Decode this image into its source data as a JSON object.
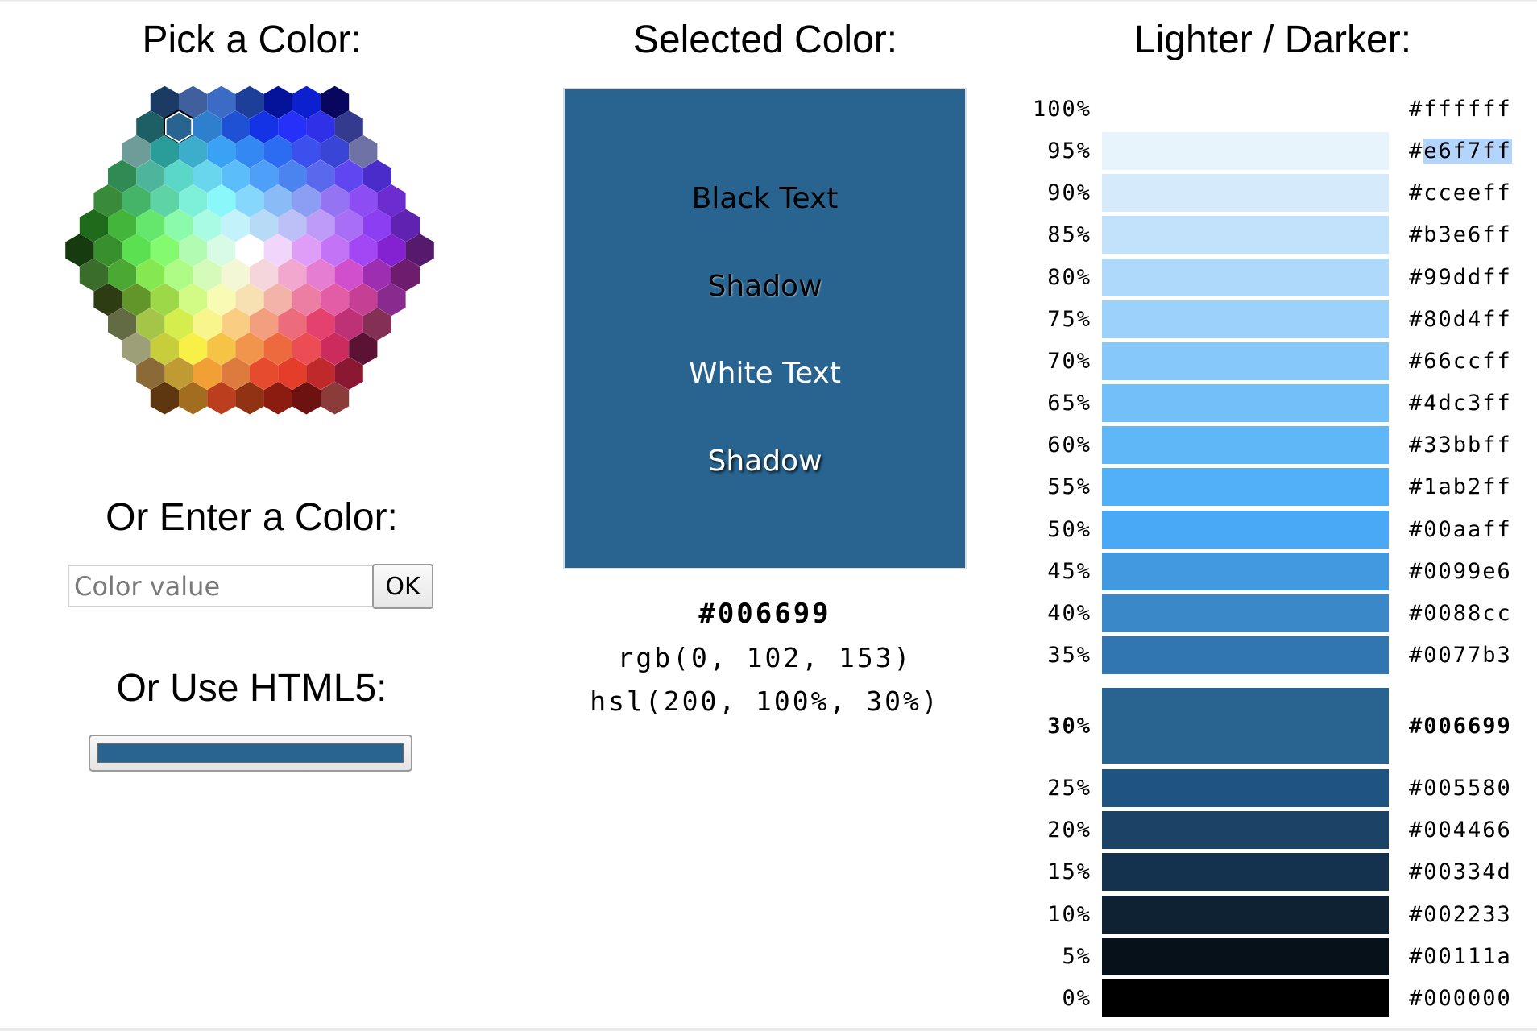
{
  "titles": {
    "pick": "Pick a Color:",
    "selected": "Selected Color:",
    "lighter_darker": "Lighter / Darker:",
    "enter": "Or Enter a Color:",
    "html5": "Or Use HTML5:"
  },
  "color_input": {
    "placeholder": "Color value",
    "value": ""
  },
  "ok_button_label": "OK",
  "selected": {
    "hex": "#006699",
    "rgb": "rgb(0, 102, 153)",
    "hsl": "hsl(200, 100%, 30%)",
    "preview_color": "#28648f"
  },
  "preview_texts": {
    "black_text": "Black Text",
    "black_shadow": "Shadow",
    "white_text": "White Text",
    "white_shadow": "Shadow"
  },
  "html5_picker_color": "#28648f",
  "shades": [
    {
      "pct": "100%",
      "hex": "#ffffff",
      "swatch": "#ffffff"
    },
    {
      "pct": "95%",
      "hex": "#e6f7ff",
      "swatch": "#e8f4fc",
      "highlight": "e6f7ff"
    },
    {
      "pct": "90%",
      "hex": "#cceeff",
      "swatch": "#d5eafb"
    },
    {
      "pct": "85%",
      "hex": "#b3e6ff",
      "swatch": "#c2e2fb"
    },
    {
      "pct": "80%",
      "hex": "#99ddff",
      "swatch": "#aed9fb"
    },
    {
      "pct": "75%",
      "hex": "#80d4ff",
      "swatch": "#9bd1fa"
    },
    {
      "pct": "70%",
      "hex": "#66ccff",
      "swatch": "#86c8f9"
    },
    {
      "pct": "65%",
      "hex": "#4dc3ff",
      "swatch": "#73bff9"
    },
    {
      "pct": "60%",
      "hex": "#33bbff",
      "swatch": "#60b7f8"
    },
    {
      "pct": "55%",
      "hex": "#1ab2ff",
      "swatch": "#52b0f8"
    },
    {
      "pct": "50%",
      "hex": "#00aaff",
      "swatch": "#4aa9f6"
    },
    {
      "pct": "45%",
      "hex": "#0099e6",
      "swatch": "#4199df"
    },
    {
      "pct": "40%",
      "hex": "#0088cc",
      "swatch": "#3a88c7"
    },
    {
      "pct": "35%",
      "hex": "#0077b3",
      "swatch": "#3176ae"
    },
    {
      "pct": "30%",
      "hex": "#006699",
      "swatch": "#28648f",
      "current": true
    },
    {
      "pct": "25%",
      "hex": "#005580",
      "swatch": "#1f5380"
    },
    {
      "pct": "20%",
      "hex": "#004466",
      "swatch": "#1a4366"
    },
    {
      "pct": "15%",
      "hex": "#00334d",
      "swatch": "#14324d"
    },
    {
      "pct": "10%",
      "hex": "#002233",
      "swatch": "#0e2233"
    },
    {
      "pct": "5%",
      "hex": "#00111a",
      "swatch": "#07111a"
    },
    {
      "pct": "0%",
      "hex": "#000000",
      "swatch": "#000000"
    }
  ],
  "hex_palette": [
    [
      "#1b3a64",
      "#3f5f9d",
      "#3c6bc6",
      "#1e3f99",
      "#04139a",
      "#0c20d0",
      "#08065e"
    ],
    [
      "#1e5f65",
      "#28648f",
      "#2f7fcf",
      "#1f51d4",
      "#1433e6",
      "#2530f9",
      "#3030e8",
      "#343a8e"
    ],
    [
      "#6e9c99",
      "#2a9c9a",
      "#3caecc",
      "#39a2f3",
      "#3389f1",
      "#2c6cf3",
      "#3b50ec",
      "#3945d4",
      "#6e72a4"
    ],
    [
      "#2f8b53",
      "#4cb59b",
      "#5bd7c7",
      "#69d6ee",
      "#5cbdfb",
      "#4e9ff7",
      "#4b83ef",
      "#5a68ee",
      "#5f46f1",
      "#4a2cca"
    ],
    [
      "#3a8a3b",
      "#43b468",
      "#5ed3a3",
      "#7ef0da",
      "#8af8fb",
      "#85d8fb",
      "#89bbf7",
      "#8c9ef3",
      "#9474f3",
      "#8c4df3",
      "#6c2cd0"
    ],
    [
      "#1e6b1c",
      "#43b53b",
      "#65e66d",
      "#8bfaaa",
      "#a9fbe4",
      "#c3f2fb",
      "#b7daf6",
      "#bcc0f6",
      "#bd9bf6",
      "#a96ef6",
      "#8c3ff2",
      "#6022b0"
    ],
    [
      "#163b0e",
      "#378f2d",
      "#5be04f",
      "#84fb6f",
      "#b2fbb3",
      "#d8fbe6",
      "#ffffff",
      "#f1d5fb",
      "#e09df8",
      "#c374f6",
      "#a346f3",
      "#8422d1",
      "#551a6b"
    ],
    [
      "#3a6d2c",
      "#4ba832",
      "#86e851",
      "#aefb86",
      "#d5fbbb",
      "#f3f7d5",
      "#f6d6dd",
      "#f2a7cf",
      "#e57ed3",
      "#d14fcd",
      "#9d2eb2",
      "#6d1c6e"
    ],
    [
      "#2e3c14",
      "#62962a",
      "#9cd848",
      "#d1fb85",
      "#f7fbb4",
      "#f7e1b3",
      "#f3b3a9",
      "#ec7ea4",
      "#e25ca6",
      "#c54094",
      "#892a8e"
    ],
    [
      "#636b44",
      "#a5c548",
      "#d5ee4e",
      "#f8f58d",
      "#f9ce83",
      "#f49e80",
      "#ec6c7b",
      "#e5416e",
      "#bf3177",
      "#843055"
    ],
    [
      "#9d9f78",
      "#c8ce3b",
      "#f9f047",
      "#f5c447",
      "#f2954c",
      "#ec6a3d",
      "#ec4c54",
      "#cb2c5d",
      "#5c1235"
    ],
    [
      "#8b6a37",
      "#c09a32",
      "#f29f35",
      "#dc7b3d",
      "#e64b2d",
      "#e43e2a",
      "#c0292c",
      "#8b1832"
    ],
    [
      "#5e3710",
      "#a36d20",
      "#bb3f1e",
      "#913313",
      "#8c1c10",
      "#6e1111",
      "#8b3b3a"
    ]
  ]
}
